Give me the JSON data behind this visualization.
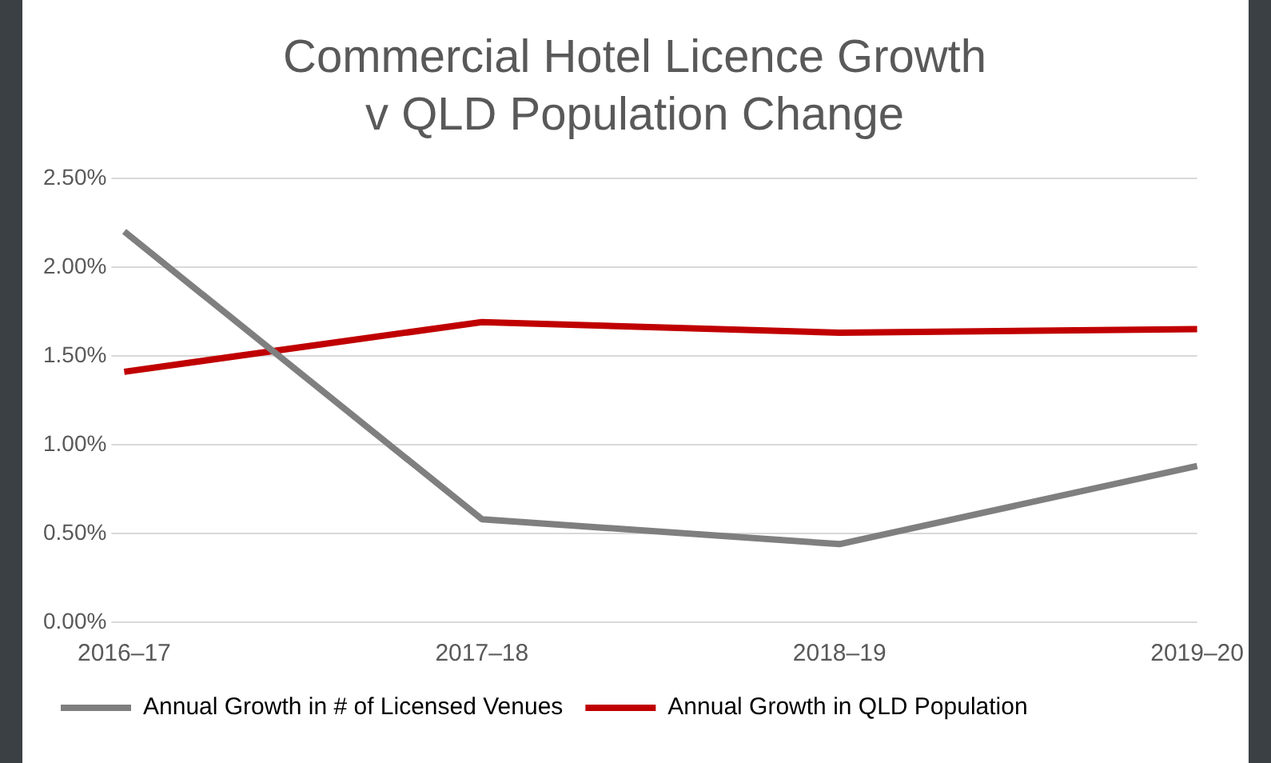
{
  "chart_data": {
    "type": "line",
    "title": "Commercial Hotel Licence Growth v QLD Population Change",
    "categories": [
      "2016–17",
      "2017–18",
      "2018–19",
      "2019–20"
    ],
    "series": [
      {
        "name": "Annual Growth in # of Licensed Venues",
        "color": "#7f7f7f",
        "values": [
          2.2,
          0.58,
          0.44,
          0.88
        ]
      },
      {
        "name": "Annual Growth in QLD Population",
        "color": "#c00000",
        "values": [
          1.41,
          1.69,
          1.63,
          1.65
        ]
      }
    ],
    "ylim": [
      0,
      2.5
    ],
    "yticks": [
      {
        "value": 0,
        "label": "0.00%"
      },
      {
        "value": 0.5,
        "label": "0.50%"
      },
      {
        "value": 1,
        "label": "1.00%"
      },
      {
        "value": 1.5,
        "label": "1.50%"
      },
      {
        "value": 2,
        "label": "2.00%"
      },
      {
        "value": 2.5,
        "label": "2.50%"
      }
    ],
    "grid": "y",
    "legend": "bottom",
    "marker": "none",
    "line_style": "solid"
  }
}
